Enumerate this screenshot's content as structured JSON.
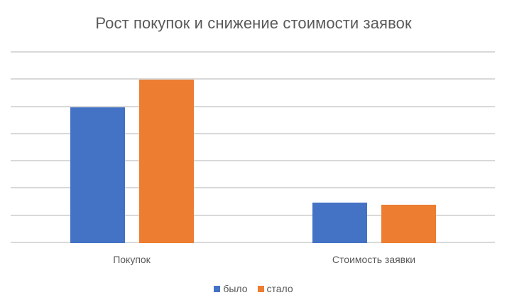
{
  "chart_data": {
    "type": "bar",
    "title": "Рост покупок и снижение стоимости заявок",
    "xlabel": "",
    "ylabel": "",
    "categories": [
      "Покупок",
      "Стоимость заявки"
    ],
    "series": [
      {
        "name": "было",
        "color": "#4472C4",
        "values": [
          5.0,
          1.5
        ]
      },
      {
        "name": "стало",
        "color": "#ED7D31",
        "values": [
          6.0,
          1.4
        ]
      }
    ],
    "ylim": [
      0,
      7
    ],
    "y_gridlines": [
      0,
      1,
      2,
      3,
      4,
      5,
      6,
      7
    ],
    "grid": true,
    "y_tick_labels_visible": false,
    "legend_position": "bottom"
  },
  "colors": {
    "title": "#595959",
    "gridline": "#D9D9D9",
    "axis_text": "#595959",
    "background": "#FFFFFF"
  }
}
